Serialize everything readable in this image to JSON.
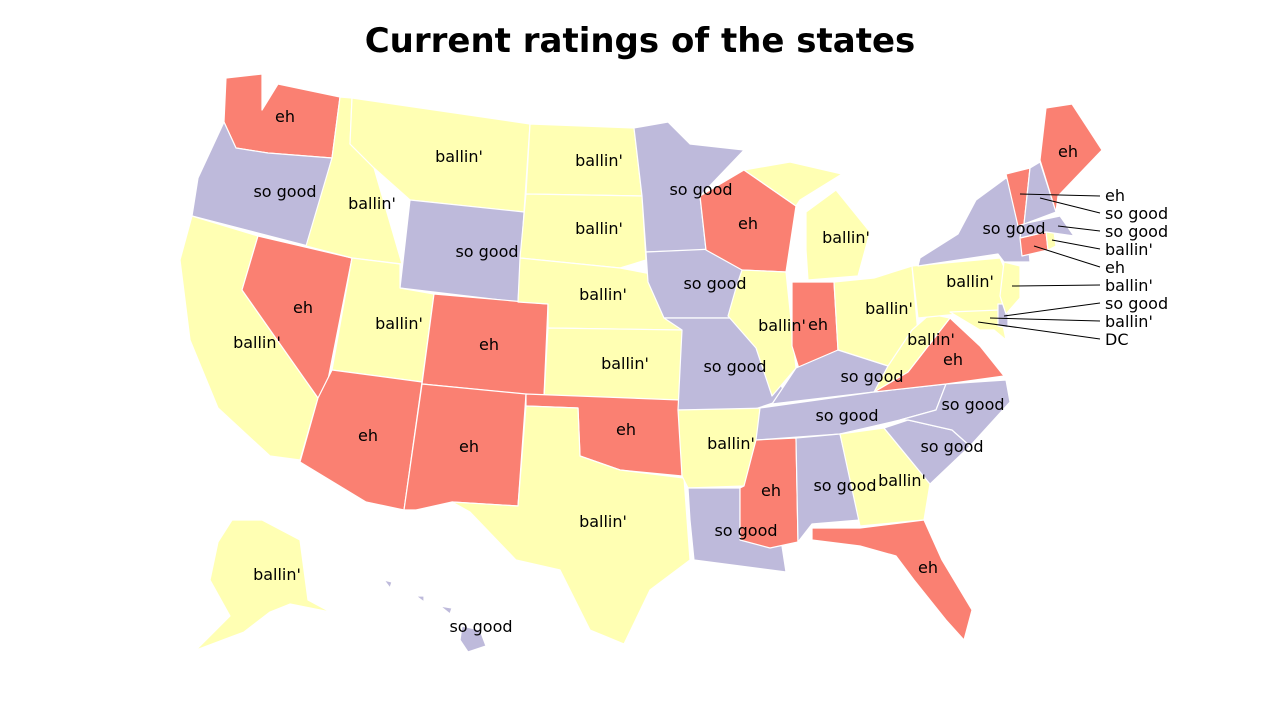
{
  "title": "Current ratings of the states",
  "colors": {
    "eh": "#fa8072",
    "so_good": "#bebadb",
    "ballin": "#ffffb3",
    "border": "#ffffff"
  },
  "states": {
    "WA": "eh",
    "OR": "so good",
    "CA": "ballin'",
    "NV": "eh",
    "ID": "ballin'",
    "MT": "ballin'",
    "WY": "so good",
    "UT": "ballin'",
    "AZ": "eh",
    "CO": "eh",
    "NM": "eh",
    "ND": "ballin'",
    "SD": "ballin'",
    "NE": "ballin'",
    "KS": "ballin'",
    "OK": "eh",
    "TX": "ballin'",
    "MN": "so good",
    "IA": "so good",
    "MO": "so good",
    "AR": "ballin'",
    "LA": "so good",
    "WI": "eh",
    "IL": "ballin'",
    "MI": "ballin'",
    "IN": "eh",
    "OH": "ballin'",
    "KY": "so good",
    "TN": "so good",
    "MS": "eh",
    "AL": "so good",
    "GA": "ballin'",
    "FL": "eh",
    "SC": "so good",
    "NC": "so good",
    "VA": "eh",
    "WV": "ballin'",
    "PA": "ballin'",
    "NY": "so good",
    "ME": "eh",
    "AK": "ballin'",
    "HI": "so good",
    "VT": "eh",
    "NH": "so good",
    "MA": "so good",
    "RI": "ballin'",
    "CT": "eh",
    "NJ": "ballin'",
    "DE": "so good",
    "MD": "ballin'",
    "DC_label": "DC"
  }
}
